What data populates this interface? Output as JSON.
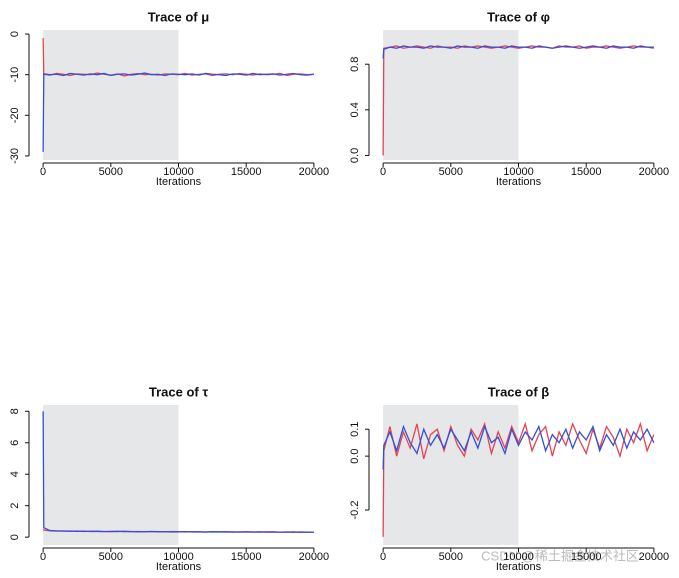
{
  "chart_data": [
    {
      "type": "line",
      "title": "Trace of  μ",
      "x_label": "Iterations",
      "x": [
        0,
        50,
        500,
        1000,
        1500,
        2000,
        2500,
        3000,
        3500,
        4000,
        4500,
        5000,
        5500,
        6000,
        6500,
        7000,
        7500,
        8000,
        8500,
        9000,
        9500,
        10000,
        10500,
        11000,
        11500,
        12000,
        12500,
        13000,
        13500,
        14000,
        14500,
        15000,
        15500,
        16000,
        16500,
        17000,
        17500,
        18000,
        18500,
        19000,
        19500,
        20000
      ],
      "series": [
        {
          "color": "#e8424f",
          "values": [
            -1,
            -9.9,
            -10.1,
            -9.7,
            -9.9,
            -10.2,
            -9.8,
            -9.9,
            -10.0,
            -9.6,
            -9.9,
            -10.1,
            -9.8,
            -10.3,
            -9.9,
            -9.7,
            -10.0,
            -9.9,
            -10.1,
            -9.8,
            -9.9,
            -10.0,
            -9.7,
            -10.1,
            -9.9,
            -9.8,
            -10.2,
            -9.9,
            -9.8,
            -10.0,
            -9.7,
            -9.9,
            -10.1,
            -9.8,
            -10.0,
            -9.9,
            -9.7,
            -10.2,
            -9.9,
            -9.8,
            -10.0,
            -9.9
          ]
        },
        {
          "color": "#2f4fdc",
          "values": [
            -29,
            -9.8,
            -10.0,
            -9.9,
            -10.2,
            -9.7,
            -9.9,
            -10.1,
            -9.8,
            -10.0,
            -9.7,
            -10.2,
            -9.9,
            -9.8,
            -10.1,
            -9.9,
            -9.6,
            -10.0,
            -9.9,
            -10.2,
            -9.8,
            -9.9,
            -10.0,
            -9.8,
            -10.1,
            -9.7,
            -9.9,
            -10.0,
            -10.2,
            -9.8,
            -9.9,
            -10.1,
            -9.7,
            -10.0,
            -9.9,
            -9.8,
            -10.1,
            -9.9,
            -9.7,
            -10.0,
            -10.1,
            -9.9
          ]
        }
      ],
      "xlim": [
        -600,
        20600
      ],
      "xticks": [
        0,
        5000,
        10000,
        15000,
        20000
      ],
      "ylim": [
        -31,
        1
      ],
      "yticks": [
        -30,
        -20,
        -10,
        0
      ],
      "shade_x": [
        0,
        10000
      ],
      "shade_color": "#e6e7e8"
    },
    {
      "type": "line",
      "title": "Trace of  φ",
      "x_label": "Iterations",
      "x": [
        0,
        50,
        500,
        1000,
        1500,
        2000,
        2500,
        3000,
        3500,
        4000,
        4500,
        5000,
        5500,
        6000,
        6500,
        7000,
        7500,
        8000,
        8500,
        9000,
        9500,
        10000,
        10500,
        11000,
        11500,
        12000,
        12500,
        13000,
        13500,
        14000,
        14500,
        15000,
        15500,
        16000,
        16500,
        17000,
        17500,
        18000,
        18500,
        19000,
        19500,
        20000
      ],
      "series": [
        {
          "color": "#e8424f",
          "values": [
            0,
            0.94,
            0.95,
            0.96,
            0.94,
            0.95,
            0.96,
            0.95,
            0.94,
            0.96,
            0.95,
            0.95,
            0.94,
            0.96,
            0.95,
            0.96,
            0.95,
            0.94,
            0.95,
            0.96,
            0.95,
            0.94,
            0.95,
            0.96,
            0.95,
            0.95,
            0.94,
            0.96,
            0.95,
            0.95,
            0.96,
            0.94,
            0.95,
            0.95,
            0.96,
            0.95,
            0.94,
            0.95,
            0.96,
            0.95,
            0.95,
            0.94
          ]
        },
        {
          "color": "#2f4fdc",
          "values": [
            0.85,
            0.93,
            0.95,
            0.94,
            0.96,
            0.95,
            0.95,
            0.94,
            0.96,
            0.95,
            0.95,
            0.94,
            0.96,
            0.95,
            0.95,
            0.94,
            0.96,
            0.95,
            0.95,
            0.94,
            0.96,
            0.95,
            0.95,
            0.94,
            0.96,
            0.95,
            0.94,
            0.95,
            0.96,
            0.95,
            0.94,
            0.95,
            0.96,
            0.95,
            0.94,
            0.96,
            0.95,
            0.95,
            0.94,
            0.96,
            0.95,
            0.95
          ]
        }
      ],
      "xlim": [
        -600,
        20600
      ],
      "xticks": [
        0,
        5000,
        10000,
        15000,
        20000
      ],
      "ylim": [
        -0.04,
        1.1
      ],
      "yticks": [
        {
          "value": 0,
          "label": "0.0"
        },
        0.4,
        0.8
      ],
      "shade_x": [
        0,
        10000
      ],
      "shade_color": "#e6e7e8"
    },
    {
      "type": "line",
      "title": "Trace of τ",
      "x_label": "Iterations",
      "x": [
        0,
        50,
        500,
        1000,
        1500,
        2000,
        2500,
        3000,
        3500,
        4000,
        4500,
        5000,
        5500,
        6000,
        6500,
        7000,
        7500,
        8000,
        8500,
        9000,
        9500,
        10000,
        10500,
        11000,
        11500,
        12000,
        12500,
        13000,
        13500,
        14000,
        14500,
        15000,
        15500,
        16000,
        16500,
        17000,
        17500,
        18000,
        18500,
        19000,
        19500,
        20000
      ],
      "series": [
        {
          "color": "#e8424f",
          "values": [
            0.5,
            0.45,
            0.4,
            0.38,
            0.4,
            0.37,
            0.39,
            0.36,
            0.38,
            0.37,
            0.35,
            0.37,
            0.36,
            0.38,
            0.35,
            0.36,
            0.34,
            0.36,
            0.35,
            0.34,
            0.36,
            0.35,
            0.33,
            0.35,
            0.34,
            0.33,
            0.35,
            0.34,
            0.33,
            0.34,
            0.32,
            0.34,
            0.33,
            0.32,
            0.34,
            0.33,
            0.32,
            0.33,
            0.31,
            0.33,
            0.32,
            0.32
          ]
        },
        {
          "color": "#2f4fdc",
          "values": [
            8,
            0.6,
            0.42,
            0.4,
            0.38,
            0.39,
            0.37,
            0.38,
            0.36,
            0.37,
            0.36,
            0.35,
            0.37,
            0.35,
            0.36,
            0.34,
            0.35,
            0.36,
            0.34,
            0.35,
            0.33,
            0.34,
            0.35,
            0.33,
            0.34,
            0.32,
            0.34,
            0.33,
            0.34,
            0.32,
            0.33,
            0.33,
            0.32,
            0.34,
            0.32,
            0.33,
            0.31,
            0.32,
            0.33,
            0.31,
            0.32,
            0.31
          ]
        }
      ],
      "xlim": [
        -600,
        20600
      ],
      "xticks": [
        0,
        5000,
        10000,
        15000,
        20000
      ],
      "ylim": [
        -0.5,
        8.4
      ],
      "yticks": [
        0,
        2,
        4,
        6,
        8
      ],
      "shade_x": [
        0,
        10000
      ],
      "shade_color": "#e6e7e8"
    },
    {
      "type": "line",
      "title": "Trace of  β",
      "x_label": "Iterations",
      "x": [
        0,
        50,
        500,
        1000,
        1500,
        2000,
        2500,
        3000,
        3500,
        4000,
        4500,
        5000,
        5500,
        6000,
        6500,
        7000,
        7500,
        8000,
        8500,
        9000,
        9500,
        10000,
        10500,
        11000,
        11500,
        12000,
        12500,
        13000,
        13500,
        14000,
        14500,
        15000,
        15500,
        16000,
        16500,
        17000,
        17500,
        18000,
        18500,
        19000,
        19500,
        20000
      ],
      "series": [
        {
          "color": "#e8424f",
          "values": [
            -0.3,
            0.02,
            0.11,
            0.0,
            0.09,
            0.03,
            0.12,
            -0.01,
            0.08,
            0.1,
            0.02,
            0.11,
            0.04,
            0.0,
            0.1,
            0.06,
            0.12,
            0.01,
            0.09,
            0.03,
            0.11,
            0.05,
            0.12,
            0.02,
            0.08,
            0.11,
            0.0,
            0.09,
            0.04,
            0.12,
            0.06,
            0.01,
            0.1,
            0.03,
            0.11,
            0.07,
            0.0,
            0.1,
            0.05,
            0.12,
            0.02,
            0.08
          ]
        },
        {
          "color": "#2f4fdc",
          "values": [
            -0.05,
            0.04,
            0.09,
            0.02,
            0.11,
            0.05,
            0.01,
            0.1,
            0.04,
            0.08,
            0.03,
            0.1,
            0.06,
            0.02,
            0.09,
            0.03,
            0.11,
            0.05,
            0.07,
            0.01,
            0.1,
            0.04,
            0.09,
            0.06,
            0.11,
            0.02,
            0.08,
            0.05,
            0.1,
            0.03,
            0.09,
            0.06,
            0.11,
            0.02,
            0.08,
            0.04,
            0.1,
            0.03,
            0.09,
            0.06,
            0.1,
            0.05
          ]
        }
      ],
      "xlim": [
        -600,
        20600
      ],
      "xticks": [
        0,
        5000,
        10000,
        15000,
        20000
      ],
      "ylim": [
        -0.33,
        0.19
      ],
      "yticks": [
        -0.2,
        {
          "value": 0,
          "label": "0.0"
        },
        0.1
      ],
      "shade_x": [
        0,
        10000
      ],
      "shade_color": "#e6e7e8"
    }
  ],
  "watermark": "CSDN @稀土掘金技术社区"
}
